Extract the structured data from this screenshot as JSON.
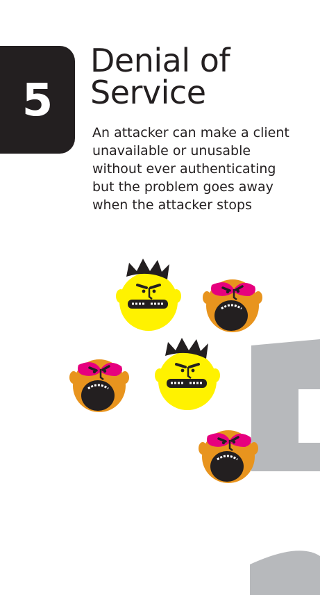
{
  "card": {
    "number": "5",
    "title_lines": [
      "Denial of",
      "Service"
    ],
    "description_lines": [
      "An attacker can make a client",
      "unavailable or unusable",
      "without ever authenticating",
      "but the problem goes away",
      "when the attacker stops"
    ]
  },
  "colors": {
    "badge": "#231f20",
    "text": "#231f20",
    "yellow_face": "#fff200",
    "orange_face": "#e8941e",
    "pink_mask": "#e6007e",
    "watermark": "#b7b9bc"
  },
  "illustration": {
    "characters": [
      {
        "kind": "yellow-crowned",
        "icon": "yellow-crowned-face-icon"
      },
      {
        "kind": "orange-masked",
        "icon": "orange-masked-face-icon"
      },
      {
        "kind": "orange-masked",
        "icon": "orange-masked-face-icon"
      },
      {
        "kind": "yellow-crowned",
        "icon": "yellow-crowned-face-icon"
      },
      {
        "kind": "orange-masked",
        "icon": "orange-masked-face-icon"
      }
    ]
  }
}
